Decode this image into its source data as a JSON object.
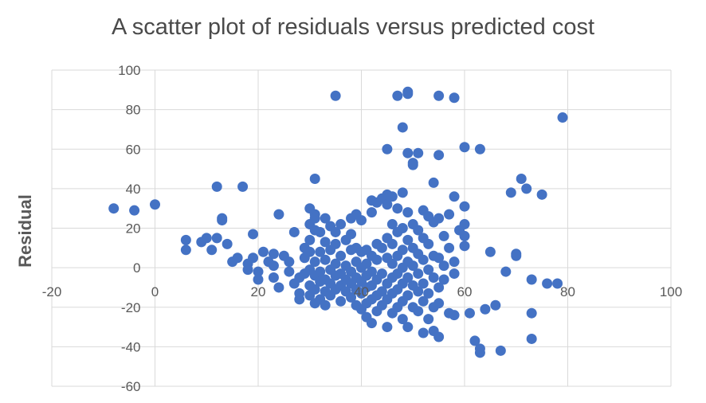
{
  "chart_data": {
    "type": "scatter",
    "title": "A scatter plot of residuals versus predicted cost",
    "xlabel": "",
    "ylabel": "Residual",
    "xlim": [
      -20,
      100
    ],
    "ylim": [
      -60,
      100
    ],
    "xticks": [
      "-20",
      "0",
      "20",
      "40",
      "60",
      "80",
      "100"
    ],
    "yticks": [
      "100",
      "80",
      "60",
      "40",
      "20",
      "0",
      "-20",
      "-40",
      "-60"
    ],
    "grid": true,
    "marker_color": "#4472C4",
    "series": [
      {
        "points": [
          [
            -8,
            30
          ],
          [
            -4,
            29
          ],
          [
            0,
            32
          ],
          [
            6,
            14
          ],
          [
            6,
            9
          ],
          [
            9,
            13
          ],
          [
            10,
            15
          ],
          [
            11,
            9
          ],
          [
            12,
            15
          ],
          [
            12,
            41
          ],
          [
            13,
            25
          ],
          [
            13,
            24
          ],
          [
            14,
            12
          ],
          [
            15,
            3
          ],
          [
            16,
            5
          ],
          [
            17,
            41
          ],
          [
            18,
            2
          ],
          [
            18,
            -1
          ],
          [
            19,
            5
          ],
          [
            19,
            17
          ],
          [
            20,
            -2
          ],
          [
            20,
            -6
          ],
          [
            21,
            8
          ],
          [
            22,
            3
          ],
          [
            23,
            1
          ],
          [
            23,
            -5
          ],
          [
            23,
            7
          ],
          [
            24,
            27
          ],
          [
            24,
            -10
          ],
          [
            25,
            6
          ],
          [
            26,
            -2
          ],
          [
            26,
            3
          ],
          [
            27,
            18
          ],
          [
            27,
            -8
          ],
          [
            28,
            -13
          ],
          [
            28,
            -5
          ],
          [
            28,
            -16
          ],
          [
            29,
            -3
          ],
          [
            29,
            5
          ],
          [
            29,
            10
          ],
          [
            30,
            30
          ],
          [
            30,
            22
          ],
          [
            30,
            14
          ],
          [
            30,
            8
          ],
          [
            30,
            -1
          ],
          [
            30,
            -9
          ],
          [
            30,
            -14
          ],
          [
            31,
            45
          ],
          [
            31,
            27
          ],
          [
            31,
            25
          ],
          [
            31,
            19
          ],
          [
            31,
            3
          ],
          [
            31,
            -4
          ],
          [
            31,
            -11
          ],
          [
            31,
            -18
          ],
          [
            32,
            18
          ],
          [
            32,
            8
          ],
          [
            32,
            -2
          ],
          [
            32,
            -7
          ],
          [
            32,
            -16
          ],
          [
            33,
            25
          ],
          [
            33,
            13
          ],
          [
            33,
            4
          ],
          [
            33,
            -6
          ],
          [
            33,
            -12
          ],
          [
            33,
            -19
          ],
          [
            34,
            21
          ],
          [
            34,
            9
          ],
          [
            34,
            -1
          ],
          [
            34,
            -8
          ],
          [
            34,
            -14
          ],
          [
            35,
            87
          ],
          [
            35,
            18
          ],
          [
            35,
            12
          ],
          [
            35,
            2
          ],
          [
            35,
            -4
          ],
          [
            35,
            -11
          ],
          [
            36,
            22
          ],
          [
            36,
            6
          ],
          [
            36,
            -3
          ],
          [
            36,
            -9
          ],
          [
            36,
            -17
          ],
          [
            37,
            14
          ],
          [
            37,
            1
          ],
          [
            37,
            -6
          ],
          [
            37,
            -12
          ],
          [
            38,
            25
          ],
          [
            38,
            17
          ],
          [
            38,
            9
          ],
          [
            38,
            -2
          ],
          [
            38,
            -8
          ],
          [
            38,
            -15
          ],
          [
            39,
            27
          ],
          [
            39,
            10
          ],
          [
            39,
            3
          ],
          [
            39,
            -5
          ],
          [
            39,
            -11
          ],
          [
            39,
            -19
          ],
          [
            40,
            24
          ],
          [
            40,
            8
          ],
          [
            40,
            0
          ],
          [
            40,
            -7
          ],
          [
            40,
            -13
          ],
          [
            40,
            -21
          ],
          [
            41,
            9
          ],
          [
            41,
            2
          ],
          [
            41,
            -4
          ],
          [
            41,
            -10
          ],
          [
            41,
            -18
          ],
          [
            41,
            -25
          ],
          [
            42,
            34
          ],
          [
            42,
            28
          ],
          [
            42,
            6
          ],
          [
            42,
            -2
          ],
          [
            42,
            -9
          ],
          [
            42,
            -16
          ],
          [
            42,
            -28
          ],
          [
            43,
            33
          ],
          [
            43,
            12
          ],
          [
            43,
            4
          ],
          [
            43,
            -6
          ],
          [
            43,
            -14
          ],
          [
            43,
            -22
          ],
          [
            44,
            35
          ],
          [
            44,
            10
          ],
          [
            44,
            -3
          ],
          [
            44,
            -12
          ],
          [
            44,
            -19
          ],
          [
            45,
            60
          ],
          [
            45,
            37
          ],
          [
            45,
            32
          ],
          [
            45,
            15
          ],
          [
            45,
            5
          ],
          [
            45,
            -8
          ],
          [
            45,
            -16
          ],
          [
            45,
            -30
          ],
          [
            46,
            36
          ],
          [
            46,
            22
          ],
          [
            46,
            12
          ],
          [
            46,
            2
          ],
          [
            46,
            -5
          ],
          [
            46,
            -13
          ],
          [
            46,
            -23
          ],
          [
            47,
            87
          ],
          [
            47,
            30
          ],
          [
            47,
            18
          ],
          [
            47,
            6
          ],
          [
            47,
            -3
          ],
          [
            47,
            -11
          ],
          [
            47,
            -20
          ],
          [
            48,
            71
          ],
          [
            48,
            38
          ],
          [
            48,
            20
          ],
          [
            48,
            9
          ],
          [
            48,
            0
          ],
          [
            48,
            -8
          ],
          [
            48,
            -17
          ],
          [
            48,
            -26
          ],
          [
            49,
            89
          ],
          [
            49,
            88
          ],
          [
            49,
            58
          ],
          [
            49,
            28
          ],
          [
            49,
            14
          ],
          [
            49,
            3
          ],
          [
            49,
            -5
          ],
          [
            49,
            -14
          ],
          [
            49,
            -30
          ],
          [
            50,
            52
          ],
          [
            50,
            53
          ],
          [
            50,
            22
          ],
          [
            50,
            10
          ],
          [
            50,
            1
          ],
          [
            50,
            -9
          ],
          [
            50,
            -20
          ],
          [
            51,
            58
          ],
          [
            51,
            19
          ],
          [
            51,
            7
          ],
          [
            51,
            -3
          ],
          [
            51,
            -12
          ],
          [
            51,
            -22
          ],
          [
            52,
            29
          ],
          [
            52,
            15
          ],
          [
            52,
            4
          ],
          [
            52,
            -8
          ],
          [
            52,
            -17
          ],
          [
            52,
            -33
          ],
          [
            53,
            26
          ],
          [
            53,
            12
          ],
          [
            53,
            -1
          ],
          [
            53,
            -13
          ],
          [
            53,
            -26
          ],
          [
            54,
            43
          ],
          [
            54,
            23
          ],
          [
            54,
            6
          ],
          [
            54,
            -5
          ],
          [
            54,
            -20
          ],
          [
            54,
            -32
          ],
          [
            55,
            87
          ],
          [
            55,
            57
          ],
          [
            55,
            25
          ],
          [
            55,
            5
          ],
          [
            55,
            -10
          ],
          [
            55,
            -18
          ],
          [
            55,
            -35
          ],
          [
            56,
            16
          ],
          [
            56,
            1
          ],
          [
            56,
            -6
          ],
          [
            57,
            27
          ],
          [
            57,
            10
          ],
          [
            57,
            -23
          ],
          [
            58,
            86
          ],
          [
            58,
            36
          ],
          [
            58,
            3
          ],
          [
            58,
            -3
          ],
          [
            58,
            -24
          ],
          [
            59,
            19
          ],
          [
            60,
            61
          ],
          [
            60,
            31
          ],
          [
            60,
            16
          ],
          [
            60,
            22
          ],
          [
            60,
            11
          ],
          [
            61,
            -23
          ],
          [
            62,
            -37
          ],
          [
            63,
            60
          ],
          [
            63,
            -43
          ],
          [
            63,
            -41
          ],
          [
            64,
            -21
          ],
          [
            65,
            8
          ],
          [
            66,
            -19
          ],
          [
            67,
            -42
          ],
          [
            68,
            -2
          ],
          [
            69,
            38
          ],
          [
            70,
            7
          ],
          [
            70,
            6
          ],
          [
            71,
            45
          ],
          [
            72,
            40
          ],
          [
            73,
            -6
          ],
          [
            73,
            -23
          ],
          [
            73,
            -36
          ],
          [
            75,
            37
          ],
          [
            76,
            -8
          ],
          [
            78,
            -8
          ],
          [
            79,
            76
          ]
        ]
      }
    ]
  }
}
